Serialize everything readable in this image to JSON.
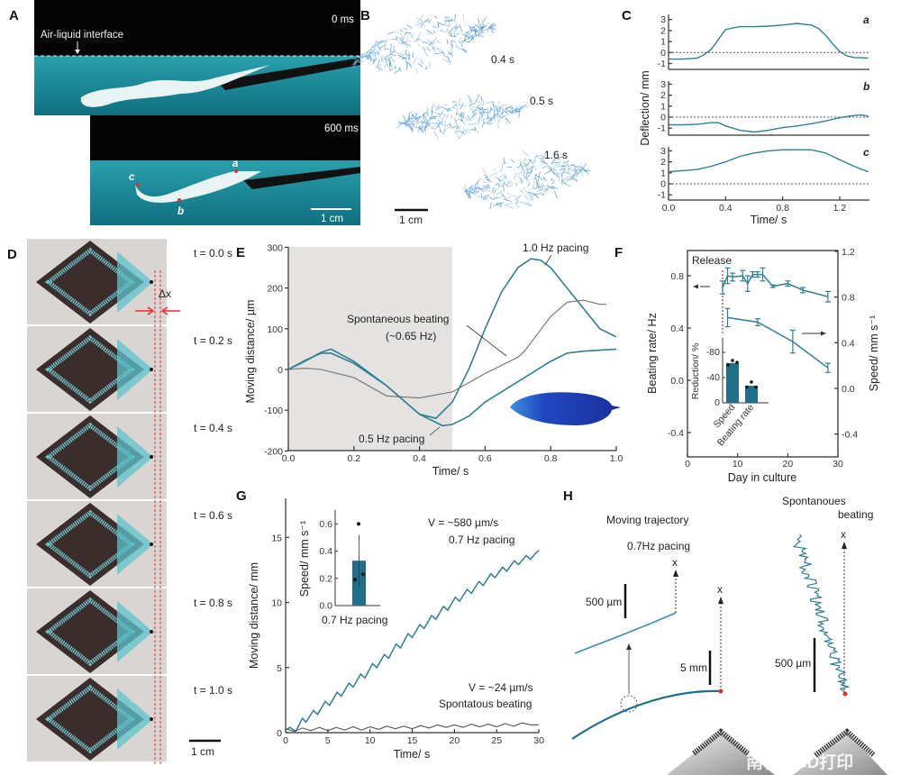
{
  "panel_labels": [
    "A",
    "B",
    "C",
    "D",
    "E",
    "F",
    "G",
    "H"
  ],
  "colors": {
    "series": "#2f7f93",
    "gray_series": "#707070",
    "bar": "#1f6f8b",
    "marker": "#e03030",
    "shade": "#e5e3e1"
  },
  "panel_a": {
    "interface_label": "Air-liquid interface",
    "time_top": "0 ms",
    "time_bottom": "600 ms",
    "point_a": "a",
    "point_b": "b",
    "point_c": "c",
    "scale": "1 cm"
  },
  "panel_b": {
    "t1": "0.4 s",
    "t2": "0.5 s",
    "t3": "1.6 s",
    "scale": "1 cm"
  },
  "panel_d": {
    "times": [
      "t = 0.0 s",
      "t = 0.2 s",
      "t = 0.4 s",
      "t = 0.6 s",
      "t = 0.8 s",
      "t = 1.0 s"
    ],
    "delta": "Δx",
    "scale": "1 cm"
  },
  "panel_h": {
    "title_left": "Moving trajectory",
    "pacing": "0.7Hz pacing",
    "scale_um_left": "500 µm",
    "axis_x1": "x",
    "axis_x2": "x",
    "scale_mm": "5 mm",
    "title_right_1": "Spontanoues",
    "title_right_2": "beating",
    "axis_x3": "x",
    "scale_um_right": "500 µm"
  },
  "watermark": "南极熊3D打印",
  "chart_data": [
    {
      "panel": "C",
      "type": "line",
      "xlabel": "Time/ s",
      "ylabel": "Deflection/ mm",
      "xlim": [
        0,
        1.4
      ],
      "ylim": [
        -1.5,
        3.5
      ],
      "xtick_labels": [
        "0.0",
        "0.4",
        "0.8",
        "1.2"
      ],
      "ytick_labels": [
        "3",
        "2",
        "1",
        "0",
        "-1"
      ],
      "subplots": [
        {
          "label": "a",
          "x": [
            0,
            0.1,
            0.2,
            0.25,
            0.3,
            0.35,
            0.4,
            0.5,
            0.6,
            0.7,
            0.8,
            0.9,
            1.0,
            1.05,
            1.1,
            1.15,
            1.2,
            1.25,
            1.3,
            1.4
          ],
          "y": [
            -0.6,
            -0.6,
            -0.5,
            -0.2,
            0.3,
            1.2,
            2.1,
            2.35,
            2.35,
            2.4,
            2.5,
            2.65,
            2.5,
            2.2,
            1.6,
            0.8,
            0.1,
            -0.3,
            -0.45,
            -0.5
          ]
        },
        {
          "label": "b",
          "x": [
            0,
            0.1,
            0.2,
            0.3,
            0.35,
            0.4,
            0.5,
            0.6,
            0.7,
            0.8,
            0.9,
            1.0,
            1.1,
            1.2,
            1.3,
            1.35,
            1.4
          ],
          "y": [
            -0.7,
            -0.7,
            -0.65,
            -0.5,
            -0.5,
            -0.8,
            -1.2,
            -1.35,
            -1.2,
            -0.95,
            -0.8,
            -0.6,
            -0.35,
            -0.05,
            0.15,
            0.2,
            0.1
          ]
        },
        {
          "label": "c",
          "x": [
            0,
            0.2,
            0.3,
            0.4,
            0.5,
            0.6,
            0.7,
            0.8,
            0.9,
            1.0,
            1.1,
            1.2,
            1.3,
            1.4
          ],
          "y": [
            1.1,
            1.3,
            1.6,
            2.0,
            2.5,
            2.8,
            3.0,
            3.1,
            3.1,
            3.1,
            2.8,
            2.2,
            1.6,
            1.1
          ]
        }
      ]
    },
    {
      "panel": "E",
      "type": "line",
      "xlabel": "Time/ s",
      "ylabel": "Moving distance/ µm",
      "xlim": [
        0,
        1.0
      ],
      "ylim": [
        -200,
        300
      ],
      "xtick_labels": [
        "0.0",
        "0.2",
        "0.4",
        "0.6",
        "0.8",
        "1.0"
      ],
      "ytick_labels": [
        "300",
        "200",
        "100",
        "0",
        "-100",
        "-200"
      ],
      "shaded_region": [
        0,
        0.5
      ],
      "series": [
        {
          "name": "1.0 Hz pacing",
          "x": [
            0,
            0.05,
            0.1,
            0.13,
            0.2,
            0.3,
            0.4,
            0.45,
            0.5,
            0.55,
            0.6,
            0.65,
            0.7,
            0.74,
            0.77,
            0.8,
            0.85,
            0.9,
            0.95,
            1.0
          ],
          "y": [
            0,
            20,
            42,
            50,
            20,
            -40,
            -110,
            -120,
            -80,
            0,
            100,
            190,
            250,
            272,
            268,
            250,
            200,
            150,
            100,
            80
          ]
        },
        {
          "name": "0.5 Hz pacing",
          "x": [
            0,
            0.05,
            0.1,
            0.13,
            0.2,
            0.3,
            0.4,
            0.47,
            0.5,
            0.55,
            0.6,
            0.7,
            0.8,
            0.85,
            0.9,
            1.0
          ],
          "y": [
            0,
            22,
            40,
            40,
            15,
            -40,
            -110,
            -138,
            -135,
            -115,
            -80,
            -30,
            20,
            40,
            45,
            50
          ]
        },
        {
          "name": "Spontaneous beating",
          "x": [
            0,
            0.05,
            0.1,
            0.2,
            0.3,
            0.4,
            0.5,
            0.6,
            0.7,
            0.72,
            0.8,
            0.85,
            0.9,
            0.95,
            0.97
          ],
          "y": [
            0,
            3,
            0,
            -20,
            -65,
            -70,
            -55,
            -10,
            30,
            45,
            130,
            165,
            170,
            160,
            160
          ]
        }
      ],
      "annotations": [
        "1.0 Hz pacing",
        "Spontaneous beating",
        "(~0.65 Hz)",
        "0.5 Hz pacing"
      ]
    },
    {
      "panel": "F",
      "type": "line",
      "xlabel": "Day in culture",
      "ylabel_left": "Beating rate/ Hz",
      "ylabel_right": "Speed/ mm s⁻¹",
      "xlim": [
        0,
        30
      ],
      "ylim_left": [
        -0.55,
        1.0
      ],
      "ylim_right": [
        -0.5,
        1.2
      ],
      "xtick_labels": [
        "0",
        "10",
        "20",
        "30"
      ],
      "ytick_labels_left": [
        "0.8",
        "0.4",
        "0.0",
        "-0.4"
      ],
      "ytick_labels_right": [
        "1.2",
        "0.8",
        "0.4",
        "0.0",
        "-0.4"
      ],
      "annotation": "Release",
      "release_day": 7,
      "series": [
        {
          "name": "Beating rate",
          "axis": "left",
          "x": [
            7,
            8,
            9,
            11,
            12,
            13,
            14,
            15,
            17,
            20,
            23,
            28
          ],
          "y": [
            0.71,
            0.8,
            0.79,
            0.8,
            0.74,
            0.81,
            0.81,
            0.81,
            0.72,
            0.74,
            0.69,
            0.64
          ],
          "err": [
            0.05,
            0.06,
            0.03,
            0.04,
            0.06,
            0.02,
            0.02,
            0.05,
            0.01,
            0.02,
            0.02,
            0.04
          ]
        },
        {
          "name": "Speed",
          "axis": "right",
          "x": [
            8,
            14,
            21,
            28
          ],
          "y": [
            0.62,
            0.58,
            0.41,
            0.18
          ],
          "err": [
            0.08,
            0.03,
            0.1,
            0.04
          ]
        }
      ]
    },
    {
      "panel": "F-inset",
      "type": "bar",
      "ylabel": "Reduction/ %",
      "ylim": [
        0,
        -100
      ],
      "ytick_labels": [
        "-80",
        "-40",
        "0"
      ],
      "categories": [
        "Speed",
        "Beating rate"
      ],
      "values": [
        -63,
        -27
      ],
      "points": [
        [
          -60,
          -67,
          -64
        ],
        [
          -25,
          -33,
          -25
        ]
      ]
    },
    {
      "panel": "G",
      "type": "line",
      "xlabel": "Time/ s",
      "ylabel": "Moving distance/ mm",
      "xlim": [
        0,
        30
      ],
      "ylim": [
        0,
        17.5
      ],
      "xtick_labels": [
        "0",
        "5",
        "10",
        "15",
        "20",
        "25",
        "30"
      ],
      "ytick_labels": [
        "0",
        "5",
        "10",
        "15"
      ],
      "series": [
        {
          "name": "0.7 Hz pacing",
          "x": [
            0,
            0.5,
            1.2,
            2.0,
            2.4,
            3.3,
            3.8,
            4.7,
            5.2,
            6.1,
            6.6,
            7.5,
            8.0,
            8.9,
            9.4,
            10.3,
            10.8,
            11.7,
            12.2,
            13.1,
            13.6,
            14.5,
            15.0,
            15.9,
            16.4,
            17.3,
            17.8,
            18.7,
            19.2,
            20.1,
            20.6,
            21.5,
            22.0,
            22.9,
            23.4,
            24.3,
            24.8,
            25.7,
            26.2,
            27.1,
            27.6,
            28.5,
            29.0,
            29.5,
            30
          ],
          "y": [
            0.2,
            0.4,
            0.1,
            1.1,
            0.8,
            1.7,
            1.4,
            2.4,
            2.1,
            3.1,
            2.8,
            3.8,
            3.5,
            4.5,
            4.2,
            5.3,
            5.0,
            6.0,
            5.7,
            6.8,
            6.5,
            7.6,
            7.3,
            8.3,
            8.0,
            9.0,
            8.7,
            9.7,
            9.4,
            10.4,
            10.1,
            11.0,
            10.7,
            11.6,
            11.3,
            12.2,
            11.9,
            12.7,
            12.4,
            13.2,
            12.9,
            13.6,
            13.3,
            13.7,
            14.0
          ]
        },
        {
          "name": "Spontatous beating",
          "x": [
            0,
            1,
            2,
            3,
            4,
            5,
            6,
            7,
            8,
            9,
            10,
            11,
            12,
            13,
            14,
            15,
            16,
            17,
            18,
            19,
            20,
            21,
            22,
            23,
            24,
            25,
            26,
            27,
            28,
            29,
            30
          ],
          "y": [
            0.3,
            0.1,
            0.35,
            0.15,
            0.4,
            0.15,
            0.4,
            0.2,
            0.45,
            0.2,
            0.45,
            0.25,
            0.5,
            0.3,
            0.5,
            0.3,
            0.55,
            0.35,
            0.6,
            0.4,
            0.6,
            0.4,
            0.65,
            0.45,
            0.65,
            0.45,
            0.7,
            0.5,
            0.75,
            0.6,
            0.6
          ]
        }
      ],
      "annotations": [
        "V = ~580 µm/s",
        "0.7 Hz pacing",
        "V = ~24 µm/s",
        "Spontatous beating"
      ]
    },
    {
      "panel": "G-inset",
      "type": "bar",
      "ylabel": "Speed/ mm s⁻¹",
      "ylim": [
        0,
        0.7
      ],
      "ytick_labels": [
        "0.6",
        "0.4",
        "0.2",
        "0.0"
      ],
      "categories": [
        "0.7 Hz pacing"
      ],
      "values": [
        0.33
      ],
      "err": [
        0.19
      ],
      "points": [
        0.6,
        0.19,
        0.23
      ]
    }
  ]
}
